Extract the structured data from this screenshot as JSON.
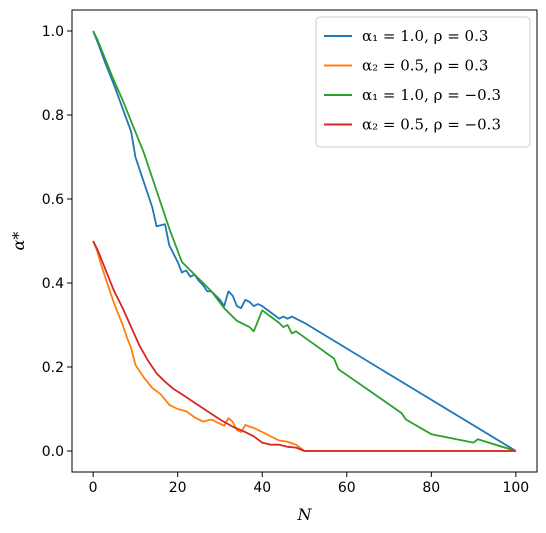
{
  "chart_data": {
    "type": "line",
    "title": "",
    "xlabel": "N",
    "ylabel": "α*",
    "xlim": [
      -5,
      105
    ],
    "ylim": [
      -0.05,
      1.05
    ],
    "xticks": [
      0,
      20,
      40,
      60,
      80,
      100
    ],
    "xtick_labels": [
      "0",
      "20",
      "40",
      "60",
      "80",
      "100"
    ],
    "yticks": [
      0.0,
      0.2,
      0.4,
      0.6,
      0.8,
      1.0
    ],
    "ytick_labels": [
      "0.0",
      "0.2",
      "0.4",
      "0.6",
      "0.8",
      "1.0"
    ],
    "grid": false,
    "legend_position": "top-right",
    "series": [
      {
        "name": "α₁ = 1.0, ρ = 0.3",
        "color": "#1f77b4",
        "x": [
          0,
          1,
          3,
          5,
          7,
          9,
          10,
          12,
          14,
          15,
          17,
          18,
          20,
          21,
          22,
          23,
          24,
          25,
          26,
          27,
          28,
          29,
          30,
          31,
          32,
          33,
          34,
          35,
          36,
          37,
          38,
          39,
          40,
          42,
          44,
          45,
          46,
          47,
          48,
          50,
          100
        ],
        "y": [
          1.0,
          0.975,
          0.92,
          0.87,
          0.815,
          0.76,
          0.7,
          0.64,
          0.58,
          0.535,
          0.54,
          0.49,
          0.45,
          0.425,
          0.43,
          0.415,
          0.42,
          0.405,
          0.395,
          0.38,
          0.38,
          0.37,
          0.36,
          0.345,
          0.38,
          0.37,
          0.345,
          0.34,
          0.36,
          0.355,
          0.345,
          0.35,
          0.345,
          0.33,
          0.315,
          0.32,
          0.315,
          0.32,
          0.315,
          0.305,
          0.0
        ]
      },
      {
        "name": "α₂ = 0.5, ρ = 0.3",
        "color": "#ff7f0e",
        "x": [
          0,
          1,
          2,
          3,
          4,
          5,
          6,
          7,
          8,
          9,
          10,
          12,
          14,
          16,
          18,
          20,
          22,
          24,
          26,
          28,
          30,
          31,
          32,
          33,
          34,
          35,
          36,
          37,
          38,
          40,
          42,
          44,
          46,
          48,
          50,
          100
        ],
        "y": [
          0.5,
          0.475,
          0.44,
          0.41,
          0.38,
          0.35,
          0.325,
          0.3,
          0.27,
          0.245,
          0.205,
          0.175,
          0.15,
          0.135,
          0.11,
          0.1,
          0.095,
          0.08,
          0.07,
          0.075,
          0.065,
          0.06,
          0.078,
          0.07,
          0.05,
          0.045,
          0.062,
          0.058,
          0.055,
          0.045,
          0.035,
          0.025,
          0.022,
          0.015,
          0.0,
          0.0
        ]
      },
      {
        "name": "α₁ = 1.0, ρ = −0.3",
        "color": "#2ca02c",
        "x": [
          0,
          1,
          3,
          5,
          7,
          9,
          12,
          15,
          18,
          21,
          25,
          28,
          31,
          34,
          37,
          38,
          40,
          42,
          44,
          45,
          46,
          47,
          48,
          57,
          58,
          73,
          74,
          80,
          90,
          91,
          100
        ],
        "y": [
          1.0,
          0.98,
          0.93,
          0.88,
          0.835,
          0.785,
          0.71,
          0.62,
          0.53,
          0.45,
          0.41,
          0.38,
          0.34,
          0.31,
          0.295,
          0.285,
          0.335,
          0.32,
          0.305,
          0.295,
          0.3,
          0.28,
          0.285,
          0.22,
          0.195,
          0.09,
          0.075,
          0.04,
          0.02,
          0.028,
          0.0
        ]
      },
      {
        "name": "α₂ = 0.5, ρ = −0.3",
        "color": "#d62728",
        "x": [
          0,
          1,
          3,
          5,
          7,
          9,
          11,
          13,
          15,
          17,
          19,
          21,
          24,
          27,
          30,
          33,
          36,
          38,
          40,
          42,
          44,
          46,
          48,
          50,
          100
        ],
        "y": [
          0.5,
          0.48,
          0.43,
          0.38,
          0.34,
          0.295,
          0.25,
          0.215,
          0.185,
          0.165,
          0.148,
          0.135,
          0.115,
          0.095,
          0.075,
          0.058,
          0.045,
          0.035,
          0.02,
          0.015,
          0.015,
          0.01,
          0.008,
          0.0,
          0.0
        ]
      }
    ]
  }
}
